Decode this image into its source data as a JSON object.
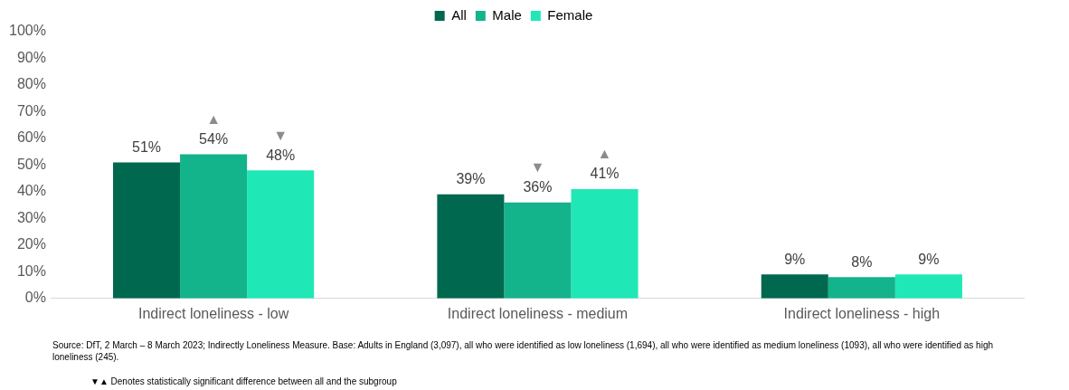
{
  "chart_data": {
    "type": "bar",
    "categories": [
      "Indirect loneliness - low",
      "Indirect loneliness - medium",
      "Indirect loneliness - high"
    ],
    "series": [
      {
        "name": "All",
        "color": "#00684f",
        "values": [
          51,
          39,
          9
        ],
        "value_labels": [
          "51%",
          "39%",
          "9%"
        ]
      },
      {
        "name": "Male",
        "color": "#13b38b",
        "values": [
          54,
          36,
          8
        ],
        "value_labels": [
          "▲\n54%",
          "▼\n36%",
          "8%"
        ]
      },
      {
        "name": "Female",
        "color": "#1fe8b6",
        "values": [
          48,
          41,
          9
        ],
        "value_labels": [
          "▼\n48%",
          "▲\n41%",
          "9%"
        ]
      }
    ],
    "ylim": [
      0,
      100
    ],
    "yticks": [
      {
        "value": 0,
        "label": "0%"
      },
      {
        "value": 10,
        "label": "10%"
      },
      {
        "value": 20,
        "label": "20%"
      },
      {
        "value": 30,
        "label": "30%"
      },
      {
        "value": 40,
        "label": "40%"
      },
      {
        "value": 50,
        "label": "50%"
      },
      {
        "value": 60,
        "label": "60%"
      },
      {
        "value": 70,
        "label": "70%"
      },
      {
        "value": 80,
        "label": "80%"
      },
      {
        "value": 90,
        "label": "90%"
      },
      {
        "value": 100,
        "label": "100%"
      }
    ],
    "grid": false,
    "legend": "top",
    "annotations": [
      "Source: DfT, 2 March – 8 March 2023; Indirectly Loneliness Measure. Base: Adults in England (3,097), all who were identified as low loneliness (1,694), all who were identified as medium loneliness (1093), all who were identified as high loneliness (245).",
      "▼▲ Denotes statistically significant difference between all and the subgroup"
    ]
  }
}
